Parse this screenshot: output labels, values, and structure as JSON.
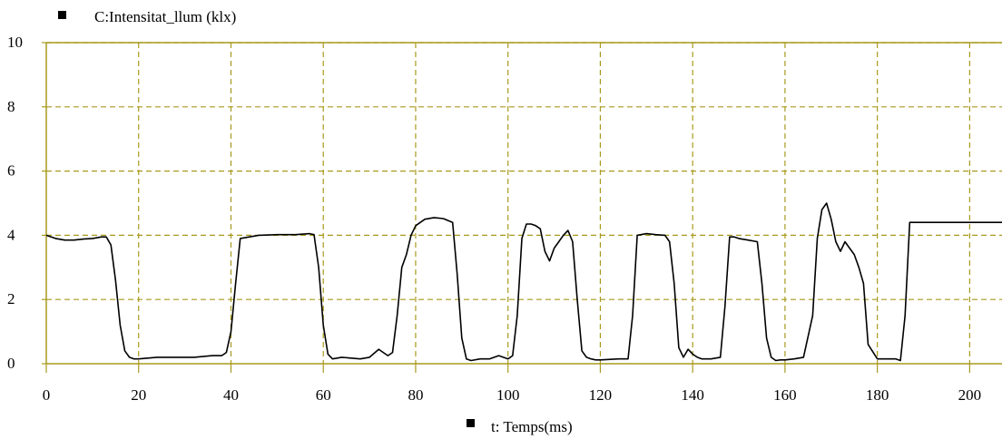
{
  "chart_data": {
    "type": "line",
    "title": "",
    "xlabel": "t: Temps(ms)",
    "ylabel": "C:Intensitat_llum  (klx)",
    "xlim": [
      0,
      207
    ],
    "ylim": [
      0,
      10
    ],
    "x_ticks": [
      0,
      20,
      40,
      60,
      80,
      100,
      120,
      140,
      160,
      180,
      200
    ],
    "y_ticks": [
      0,
      2,
      4,
      6,
      8,
      10
    ],
    "grid": true,
    "grid_style": "dashed",
    "legend": "top-left",
    "colors": {
      "line": "#000000",
      "grid": "#a89a1e",
      "axis": "#a89a1e",
      "marker": "#000000",
      "background": "#ffffff"
    },
    "series": [
      {
        "name": "C:Intensitat_llum  (klx)",
        "x": [
          0,
          2,
          4,
          6,
          8,
          10,
          12,
          13,
          14,
          15,
          16,
          17,
          18,
          19,
          20,
          24,
          28,
          32,
          36,
          38,
          39,
          40,
          41,
          42,
          46,
          50,
          54,
          57,
          58,
          59,
          60,
          61,
          62,
          64,
          68,
          70,
          72,
          73,
          74,
          75,
          76,
          77,
          78,
          79,
          80,
          82,
          84,
          86,
          88,
          89,
          90,
          91,
          92,
          94,
          96,
          98,
          99,
          100,
          101,
          102,
          103,
          104,
          105,
          106,
          107,
          108,
          109,
          110,
          111,
          112,
          113,
          114,
          115,
          116,
          117,
          118,
          119,
          120,
          124,
          126,
          127,
          128,
          130,
          132,
          134,
          135,
          136,
          137,
          138,
          139,
          140,
          141,
          142,
          144,
          146,
          147,
          148,
          149,
          150,
          152,
          154,
          155,
          156,
          157,
          158,
          159,
          160,
          162,
          164,
          166,
          167,
          168,
          169,
          170,
          171,
          172,
          173,
          174,
          175,
          176,
          177,
          178,
          180,
          182,
          184,
          185,
          186,
          187,
          190,
          195,
          200,
          207
        ],
        "y": [
          4.0,
          3.9,
          3.85,
          3.85,
          3.88,
          3.9,
          3.95,
          3.95,
          3.7,
          2.6,
          1.2,
          0.4,
          0.2,
          0.15,
          0.15,
          0.2,
          0.2,
          0.2,
          0.25,
          0.25,
          0.35,
          1.0,
          2.5,
          3.9,
          4.0,
          4.02,
          4.02,
          4.05,
          4.02,
          3.0,
          1.2,
          0.3,
          0.15,
          0.2,
          0.15,
          0.2,
          0.45,
          0.35,
          0.25,
          0.35,
          1.5,
          3.0,
          3.4,
          4.0,
          4.3,
          4.5,
          4.55,
          4.52,
          4.4,
          2.8,
          0.8,
          0.15,
          0.1,
          0.15,
          0.15,
          0.25,
          0.2,
          0.15,
          0.25,
          1.5,
          3.9,
          4.35,
          4.35,
          4.3,
          4.2,
          3.5,
          3.2,
          3.6,
          3.8,
          4.0,
          4.15,
          3.8,
          2.0,
          0.4,
          0.2,
          0.15,
          0.12,
          0.12,
          0.15,
          0.15,
          1.5,
          4.0,
          4.05,
          4.02,
          4.0,
          3.8,
          2.5,
          0.5,
          0.2,
          0.45,
          0.3,
          0.2,
          0.15,
          0.15,
          0.2,
          1.8,
          3.95,
          3.95,
          3.9,
          3.85,
          3.8,
          2.5,
          0.8,
          0.2,
          0.1,
          0.12,
          0.12,
          0.15,
          0.2,
          1.5,
          3.9,
          4.8,
          5.0,
          4.5,
          3.8,
          3.5,
          3.8,
          3.6,
          3.4,
          3.0,
          2.5,
          0.6,
          0.15,
          0.15,
          0.15,
          0.1,
          1.5,
          4.4,
          4.4,
          4.4,
          4.4,
          4.4
        ]
      }
    ]
  }
}
